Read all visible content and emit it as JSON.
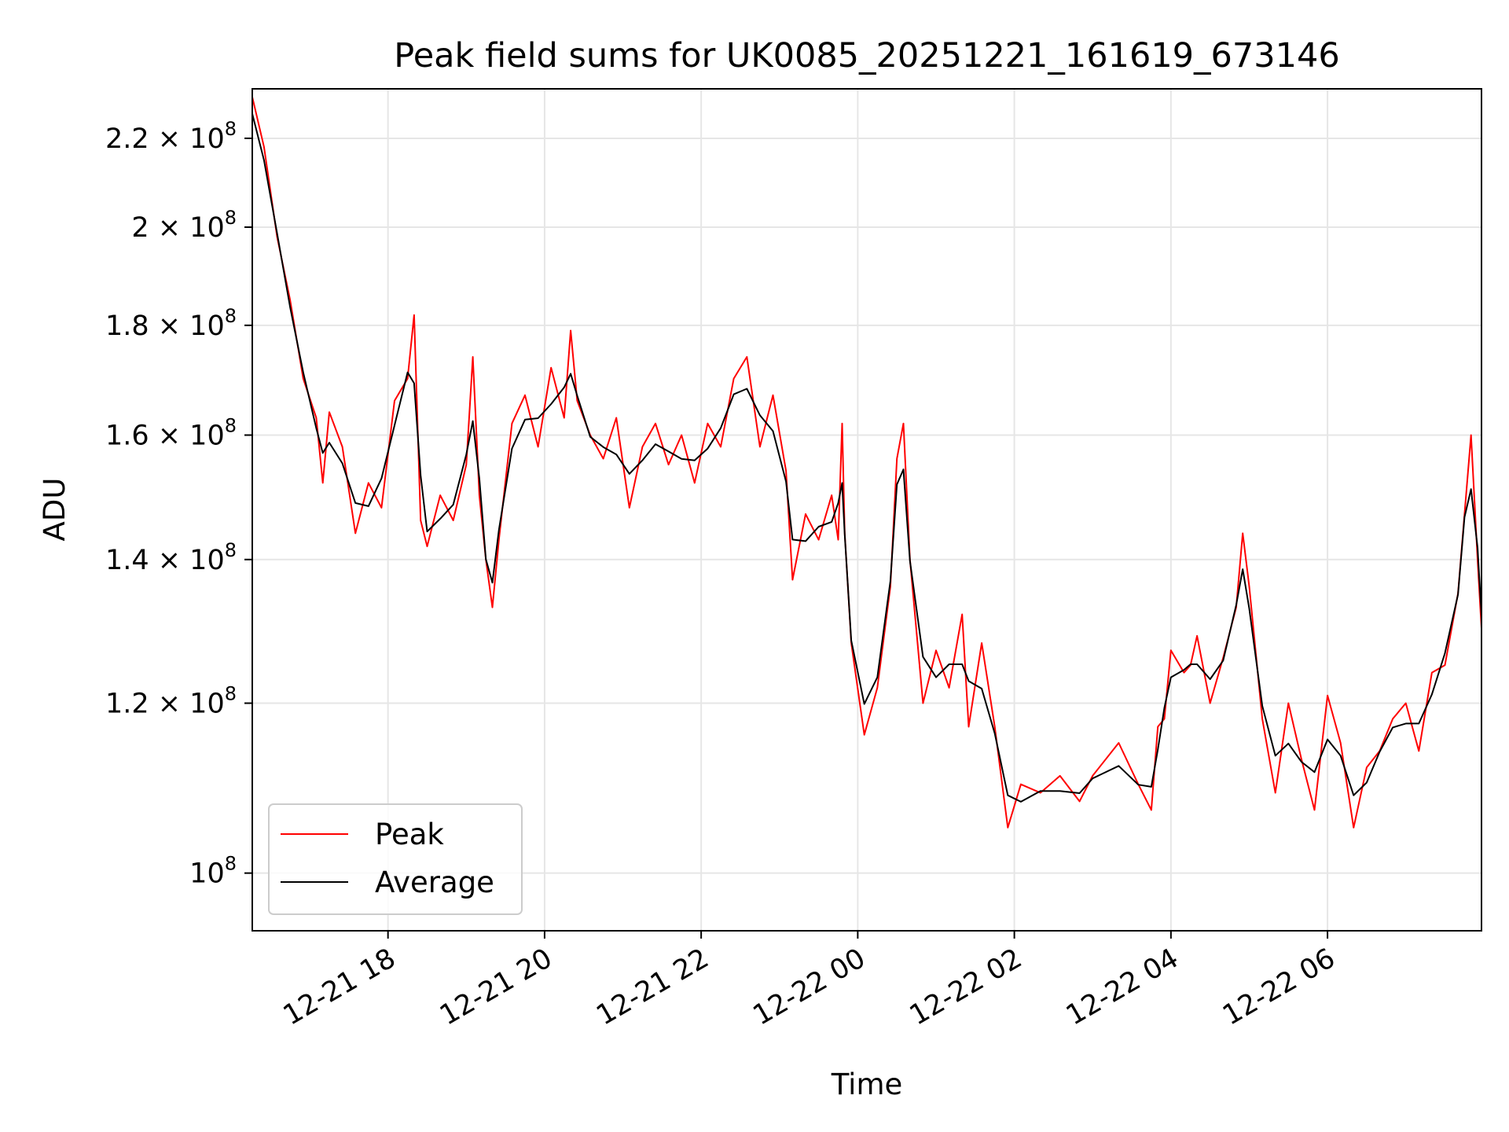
{
  "chart_data": {
    "type": "line",
    "title": "Peak field sums for UK0085_20251221_161619_673146",
    "xlabel": "Time",
    "ylabel": "ADU",
    "y_scale": "log",
    "ylim": [
      94000000,
      232000000
    ],
    "xlim": [
      "2025-12-21 16:16",
      "2025-12-22 07:58"
    ],
    "grid": true,
    "legend_position": "lower-left",
    "x_ticks": [
      {
        "t": "2025-12-21 18:00",
        "label": "12-21 18"
      },
      {
        "t": "2025-12-21 20:00",
        "label": "12-21 20"
      },
      {
        "t": "2025-12-21 22:00",
        "label": "12-21 22"
      },
      {
        "t": "2025-12-22 00:00",
        "label": "12-22 00"
      },
      {
        "t": "2025-12-22 02:00",
        "label": "12-22 02"
      },
      {
        "t": "2025-12-22 04:00",
        "label": "12-22 04"
      },
      {
        "t": "2025-12-22 06:00",
        "label": "12-22 06"
      }
    ],
    "y_ticks": [
      {
        "value": 100000000,
        "mantissa": "",
        "exp": "8"
      },
      {
        "value": 120000000,
        "mantissa": "1.2",
        "exp": "8"
      },
      {
        "value": 140000000,
        "mantissa": "1.4",
        "exp": "8"
      },
      {
        "value": 160000000,
        "mantissa": "1.6",
        "exp": "8"
      },
      {
        "value": 180000000,
        "mantissa": "1.8",
        "exp": "8"
      },
      {
        "value": 200000000,
        "mantissa": "2",
        "exp": "8"
      },
      {
        "value": 220000000,
        "mantissa": "2.2",
        "exp": "8"
      }
    ],
    "series": [
      {
        "name": "Peak",
        "color": "#ff0000",
        "points": [
          [
            "2025-12-21 16:16",
            230000000.0
          ],
          [
            "2025-12-21 16:25",
            218000000.0
          ],
          [
            "2025-12-21 16:35",
            198000000.0
          ],
          [
            "2025-12-21 16:45",
            185000000.0
          ],
          [
            "2025-12-21 16:55",
            170000000.0
          ],
          [
            "2025-12-21 17:05",
            163000000.0
          ],
          [
            "2025-12-21 17:10",
            152000000.0
          ],
          [
            "2025-12-21 17:15",
            164000000.0
          ],
          [
            "2025-12-21 17:25",
            158000000.0
          ],
          [
            "2025-12-21 17:35",
            144000000.0
          ],
          [
            "2025-12-21 17:45",
            152000000.0
          ],
          [
            "2025-12-21 17:55",
            148000000.0
          ],
          [
            "2025-12-21 18:05",
            166000000.0
          ],
          [
            "2025-12-21 18:15",
            170000000.0
          ],
          [
            "2025-12-21 18:20",
            182000000.0
          ],
          [
            "2025-12-21 18:25",
            146000000.0
          ],
          [
            "2025-12-21 18:30",
            142000000.0
          ],
          [
            "2025-12-21 18:40",
            150000000.0
          ],
          [
            "2025-12-21 18:50",
            146000000.0
          ],
          [
            "2025-12-21 19:00",
            155000000.0
          ],
          [
            "2025-12-21 19:05",
            174000000.0
          ],
          [
            "2025-12-21 19:10",
            150000000.0
          ],
          [
            "2025-12-21 19:15",
            140000000.0
          ],
          [
            "2025-12-21 19:20",
            133000000.0
          ],
          [
            "2025-12-21 19:25",
            143000000.0
          ],
          [
            "2025-12-21 19:35",
            162000000.0
          ],
          [
            "2025-12-21 19:45",
            167000000.0
          ],
          [
            "2025-12-21 19:55",
            158000000.0
          ],
          [
            "2025-12-21 20:05",
            172000000.0
          ],
          [
            "2025-12-21 20:15",
            163000000.0
          ],
          [
            "2025-12-21 20:20",
            179000000.0
          ],
          [
            "2025-12-21 20:25",
            166000000.0
          ],
          [
            "2025-12-21 20:35",
            160000000.0
          ],
          [
            "2025-12-21 20:45",
            156000000.0
          ],
          [
            "2025-12-21 20:55",
            163000000.0
          ],
          [
            "2025-12-21 21:05",
            148000000.0
          ],
          [
            "2025-12-21 21:15",
            158000000.0
          ],
          [
            "2025-12-21 21:25",
            162000000.0
          ],
          [
            "2025-12-21 21:35",
            155000000.0
          ],
          [
            "2025-12-21 21:45",
            160000000.0
          ],
          [
            "2025-12-21 21:55",
            152000000.0
          ],
          [
            "2025-12-21 22:05",
            162000000.0
          ],
          [
            "2025-12-21 22:15",
            158000000.0
          ],
          [
            "2025-12-21 22:25",
            170000000.0
          ],
          [
            "2025-12-21 22:35",
            174000000.0
          ],
          [
            "2025-12-21 22:45",
            158000000.0
          ],
          [
            "2025-12-21 22:55",
            167000000.0
          ],
          [
            "2025-12-21 23:05",
            154000000.0
          ],
          [
            "2025-12-21 23:10",
            137000000.0
          ],
          [
            "2025-12-21 23:20",
            147000000.0
          ],
          [
            "2025-12-21 23:30",
            143000000.0
          ],
          [
            "2025-12-21 23:40",
            150000000.0
          ],
          [
            "2025-12-21 23:45",
            143000000.0
          ],
          [
            "2025-12-21 23:48",
            162000000.0
          ],
          [
            "2025-12-21 23:50",
            144000000.0
          ],
          [
            "2025-12-21 23:55",
            128000000.0
          ],
          [
            "2025-12-22 00:05",
            116000000.0
          ],
          [
            "2025-12-22 00:15",
            122000000.0
          ],
          [
            "2025-12-22 00:25",
            136000000.0
          ],
          [
            "2025-12-22 00:30",
            156000000.0
          ],
          [
            "2025-12-22 00:35",
            162000000.0
          ],
          [
            "2025-12-22 00:40",
            140000000.0
          ],
          [
            "2025-12-22 00:50",
            120000000.0
          ],
          [
            "2025-12-22 01:00",
            127000000.0
          ],
          [
            "2025-12-22 01:10",
            122000000.0
          ],
          [
            "2025-12-22 01:20",
            132000000.0
          ],
          [
            "2025-12-22 01:25",
            117000000.0
          ],
          [
            "2025-12-22 01:35",
            128000000.0
          ],
          [
            "2025-12-22 01:45",
            117000000.0
          ],
          [
            "2025-12-22 01:55",
            105000000.0
          ],
          [
            "2025-12-22 02:05",
            110000000.0
          ],
          [
            "2025-12-22 02:20",
            109000000.0
          ],
          [
            "2025-12-22 02:35",
            111000000.0
          ],
          [
            "2025-12-22 02:50",
            108000000.0
          ],
          [
            "2025-12-22 03:00",
            111000000.0
          ],
          [
            "2025-12-22 03:20",
            115000000.0
          ],
          [
            "2025-12-22 03:35",
            110000000.0
          ],
          [
            "2025-12-22 03:45",
            107000000.0
          ],
          [
            "2025-12-22 03:50",
            117000000.0
          ],
          [
            "2025-12-22 03:55",
            118000000.0
          ],
          [
            "2025-12-22 04:00",
            127000000.0
          ],
          [
            "2025-12-22 04:10",
            124000000.0
          ],
          [
            "2025-12-22 04:15",
            125000000.0
          ],
          [
            "2025-12-22 04:20",
            129000000.0
          ],
          [
            "2025-12-22 04:30",
            120000000.0
          ],
          [
            "2025-12-22 04:40",
            126000000.0
          ],
          [
            "2025-12-22 04:50",
            133000000.0
          ],
          [
            "2025-12-22 04:55",
            144000000.0
          ],
          [
            "2025-12-22 05:00",
            136000000.0
          ],
          [
            "2025-12-22 05:10",
            118000000.0
          ],
          [
            "2025-12-22 05:20",
            109000000.0
          ],
          [
            "2025-12-22 05:30",
            120000000.0
          ],
          [
            "2025-12-22 05:40",
            113000000.0
          ],
          [
            "2025-12-22 05:50",
            107000000.0
          ],
          [
            "2025-12-22 06:00",
            121000000.0
          ],
          [
            "2025-12-22 06:10",
            115000000.0
          ],
          [
            "2025-12-22 06:20",
            105000000.0
          ],
          [
            "2025-12-22 06:30",
            112000000.0
          ],
          [
            "2025-12-22 06:40",
            114000000.0
          ],
          [
            "2025-12-22 06:50",
            118000000.0
          ],
          [
            "2025-12-22 07:00",
            120000000.0
          ],
          [
            "2025-12-22 07:10",
            114000000.0
          ],
          [
            "2025-12-22 07:20",
            124000000.0
          ],
          [
            "2025-12-22 07:30",
            125000000.0
          ],
          [
            "2025-12-22 07:40",
            135000000.0
          ],
          [
            "2025-12-22 07:45",
            147000000.0
          ],
          [
            "2025-12-22 07:50",
            160000000.0
          ],
          [
            "2025-12-22 07:55",
            140000000.0
          ],
          [
            "2025-12-22 07:58",
            130000000.0
          ]
        ]
      },
      {
        "name": "Average",
        "color": "#000000",
        "points": []
      }
    ]
  }
}
